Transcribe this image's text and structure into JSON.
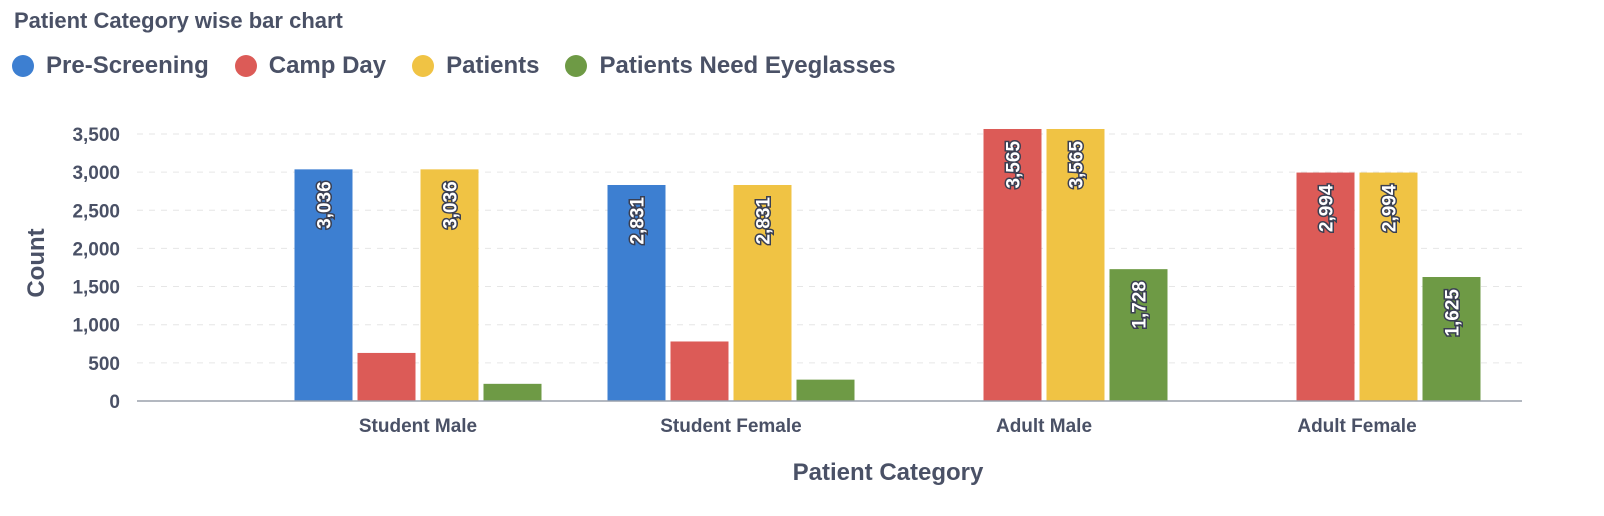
{
  "chart_data": {
    "type": "bar",
    "title": "Patient Category wise bar chart",
    "xlabel": "Patient Category",
    "ylabel": "Count",
    "categories": [
      "Student Male",
      "Student Female",
      "Adult Male",
      "Adult Female"
    ],
    "ylim": [
      0,
      3500
    ],
    "yticks": [
      "0",
      "500",
      "1,000",
      "1,500",
      "2,000",
      "2,500",
      "3,000",
      "3,500"
    ],
    "grid": true,
    "legend_position": "top-left",
    "series": [
      {
        "name": "Pre-Screening",
        "color": "#3d7fd1",
        "values": [
          3036,
          2831,
          0,
          0
        ],
        "labels": [
          "3,036",
          "2,831",
          "",
          ""
        ]
      },
      {
        "name": "Camp Day",
        "color": "#dc5b57",
        "values": [
          630,
          780,
          3565,
          2994
        ],
        "labels": [
          "",
          "",
          "3,565",
          "2,994"
        ]
      },
      {
        "name": "Patients",
        "color": "#f0c344",
        "values": [
          3036,
          2831,
          3565,
          2994
        ],
        "labels": [
          "3,036",
          "2,831",
          "3,565",
          "2,994"
        ]
      },
      {
        "name": "Patients Need Eyeglasses",
        "color": "#6e9a45",
        "values": [
          225,
          280,
          1728,
          1625
        ],
        "labels": [
          "",
          "",
          "1,728",
          "1,625"
        ]
      }
    ]
  }
}
